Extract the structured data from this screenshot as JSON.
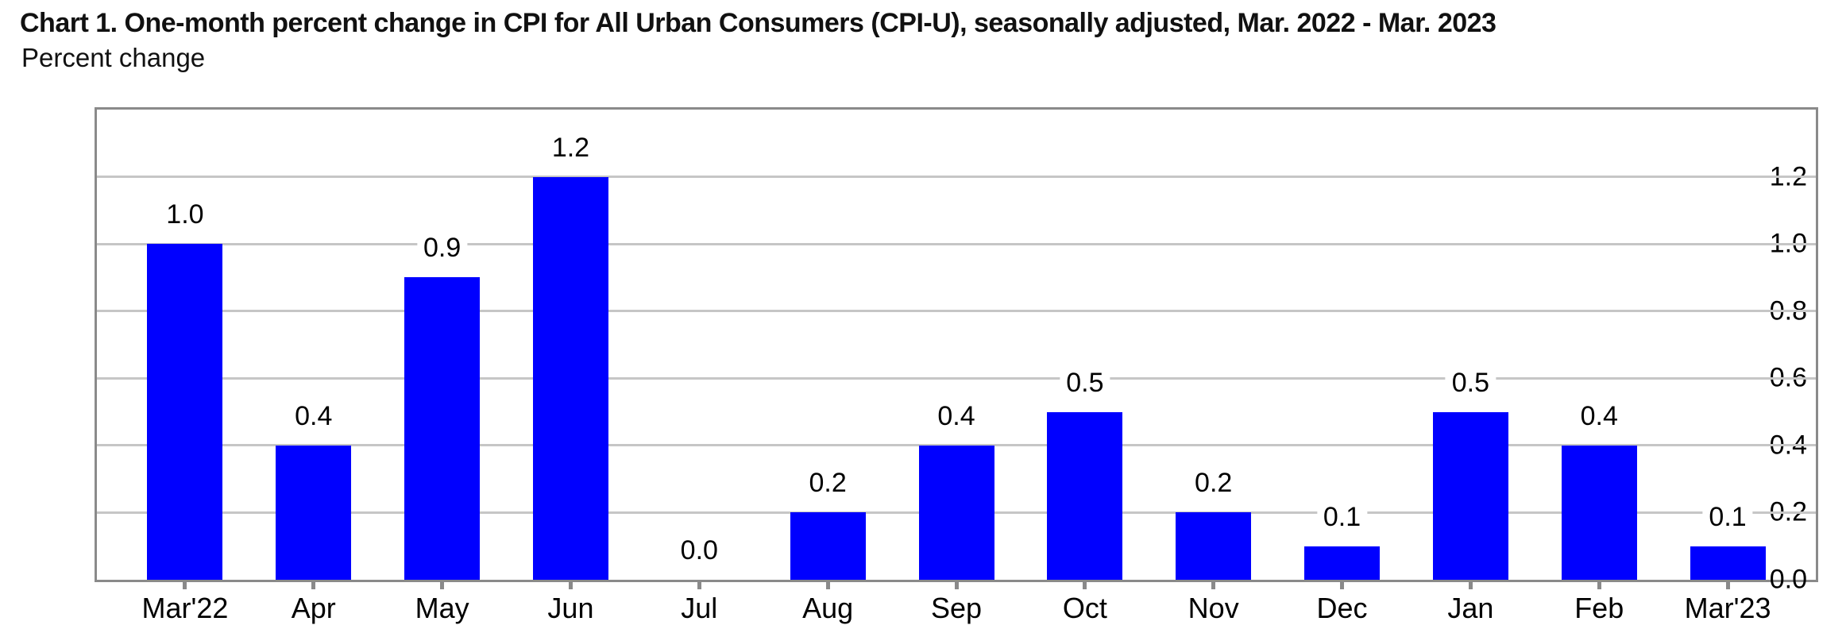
{
  "title": "Chart 1. One-month percent change in CPI for All Urban Consumers (CPI-U), seasonally adjusted, Mar. 2022 - Mar. 2023",
  "subtitle": "Percent change",
  "chart_data": {
    "type": "bar",
    "title": "Chart 1. One-month percent change in CPI for All Urban Consumers (CPI-U), seasonally adjusted, Mar. 2022 - Mar. 2023",
    "xlabel": "",
    "ylabel": "Percent change",
    "categories": [
      "Mar'22",
      "Apr",
      "May",
      "Jun",
      "Jul",
      "Aug",
      "Sep",
      "Oct",
      "Nov",
      "Dec",
      "Jan",
      "Feb",
      "Mar'23"
    ],
    "values": [
      1.0,
      0.4,
      0.9,
      1.2,
      0.0,
      0.2,
      0.4,
      0.5,
      0.2,
      0.1,
      0.5,
      0.4,
      0.1
    ],
    "value_labels": [
      "1.0",
      "0.4",
      "0.9",
      "1.2",
      "0.0",
      "0.2",
      "0.4",
      "0.5",
      "0.2",
      "0.1",
      "0.5",
      "0.4",
      "0.1"
    ],
    "ylim": [
      0,
      1.4
    ],
    "yticks": [
      0.0,
      0.2,
      0.4,
      0.6,
      0.8,
      1.0,
      1.2
    ],
    "ytick_labels": [
      "0.0",
      "0.2",
      "0.4",
      "0.6",
      "0.8",
      "1.0",
      "1.2"
    ],
    "grid": true,
    "legend": "none",
    "bar_color": "#0000ff",
    "grid_color": "#c6c6c6",
    "axis_color": "#8a8a8a",
    "text_color": "#000000"
  }
}
